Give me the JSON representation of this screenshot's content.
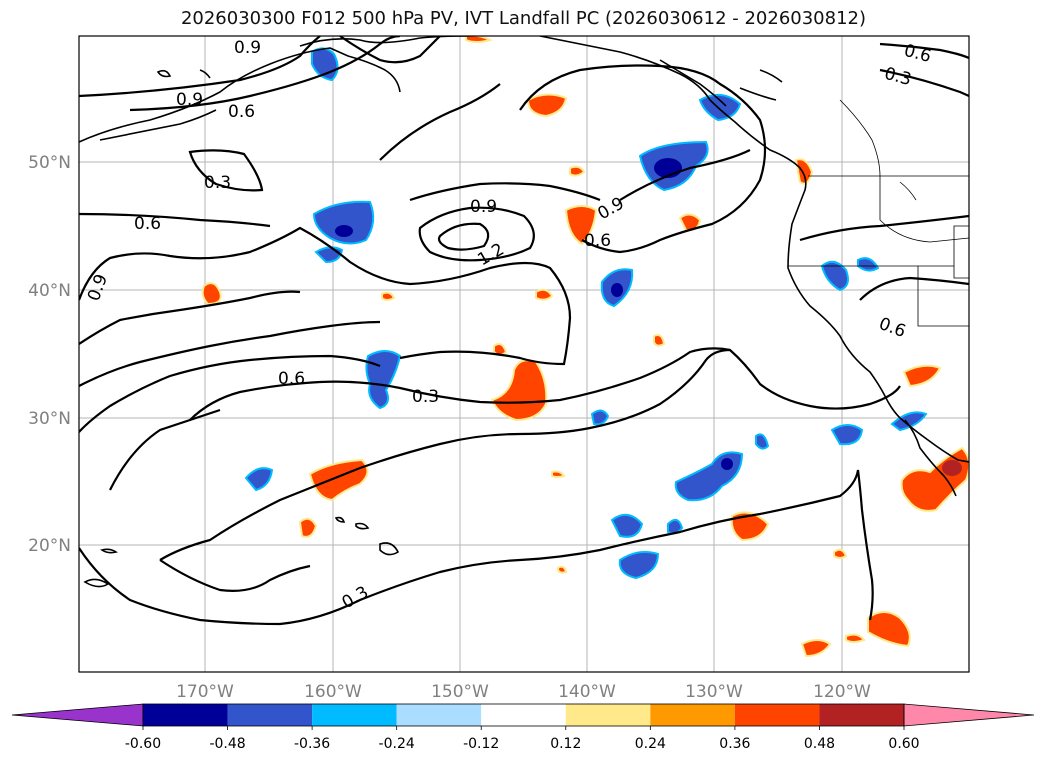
{
  "title": "2026030300 F012 500 hPa PV, IVT Landfall PC (2026030612 - 2026030812)",
  "lat_labels": [
    "50°N",
    "40°N",
    "30°N",
    "20°N"
  ],
  "lon_labels": [
    "170°W",
    "160°W",
    "150°W",
    "140°W",
    "130°W",
    "120°W"
  ],
  "contour_labels": [
    "0.9",
    "0.9",
    "0.6",
    "0.3",
    "0.6",
    "0.9",
    "0.9",
    "1.2",
    "0.9",
    "0.6",
    "0.6",
    "0.3",
    "0.6",
    "0.3",
    "0.6",
    "0.3"
  ],
  "colorbar": {
    "tick_labels": [
      "-0.60",
      "-0.48",
      "-0.36",
      "-0.24",
      "-0.12",
      "0.12",
      "0.24",
      "0.36",
      "0.48",
      "0.60"
    ],
    "colors": [
      "#9933cc",
      "#000099",
      "#3355cc",
      "#00bbff",
      "#aaddff",
      "#ffffff",
      "#ffe98a",
      "#ff9900",
      "#ff4400",
      "#b22222",
      "#ff88aa"
    ]
  }
}
